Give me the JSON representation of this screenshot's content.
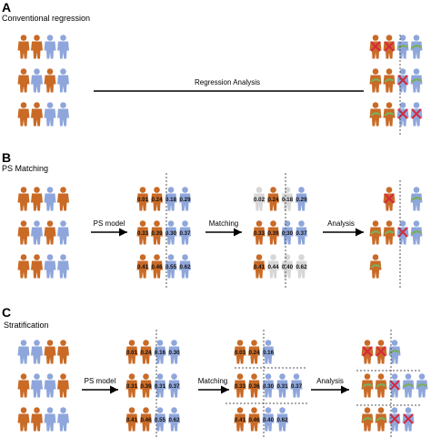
{
  "colors": {
    "treated": "#c96a26",
    "control": "#8ea6db",
    "unmatched": "#d7d7d7",
    "outcome_good": "#7cae5a",
    "outcome_bad": "#d6283e",
    "divider": "#555555"
  },
  "panels": {
    "A": {
      "letter": "A",
      "title": "Conventional regression",
      "arrow_label": "Regression Analysis"
    },
    "B": {
      "letter": "B",
      "title": "PS Matching",
      "arrow_labels": [
        "PS model",
        "Matching",
        "Analysis"
      ],
      "ps_scores": [
        [
          "0.01",
          "0.24",
          "0.18",
          "0.29"
        ],
        [
          "0.33",
          "0.39",
          "0.30",
          "0.37"
        ],
        [
          "0.41",
          "0.46",
          "0.55",
          "0.62"
        ]
      ],
      "matched_scores": [
        [
          "0.02",
          "0.24",
          "0.18",
          "0.29"
        ],
        [
          "0.33",
          "0.39",
          "0.30",
          "0.37"
        ],
        [
          "0.41",
          "0.44",
          "0.40",
          "0.62"
        ]
      ]
    },
    "C": {
      "letter": "C",
      "title": "Stratification",
      "arrow_labels": [
        "PS model",
        "Matching",
        "Analysis"
      ],
      "ps_scores": [
        [
          "0.01",
          "0.24",
          "0.16",
          "0.30"
        ],
        [
          "0.31",
          "0.39",
          "0.31",
          "0.37"
        ],
        [
          "0.41",
          "0.46",
          "0.55",
          "0.62"
        ]
      ],
      "strata_scores": [
        [
          "0.03",
          "0.24",
          "0.16"
        ],
        [
          "0.33",
          "0.36",
          "0.30",
          "0.31",
          "0.37"
        ],
        [
          "0.41",
          "0.46",
          "0.40",
          "0.62"
        ]
      ]
    }
  },
  "groups": {
    "A_start": [
      [
        "T",
        "T",
        "C",
        "C"
      ],
      [
        "T",
        "C",
        "T",
        "C"
      ],
      [
        "T",
        "T",
        "C",
        "C"
      ]
    ],
    "A_result": [
      [
        "T",
        "T",
        "C",
        "C"
      ],
      [
        "T",
        "T",
        "C",
        "C"
      ],
      [
        "T",
        "T",
        "C",
        "C"
      ]
    ],
    "A_result_marks": [
      [
        "X",
        "X",
        "G",
        "G"
      ],
      [
        "G",
        "G",
        "X",
        "G"
      ],
      [
        "G",
        "G",
        "X",
        "X"
      ]
    ],
    "B_start": [
      [
        "T",
        "T",
        "C",
        "T"
      ],
      [
        "T",
        "C",
        "T",
        "C"
      ],
      [
        "T",
        "T",
        "C",
        "C"
      ]
    ],
    "B_ps": [
      [
        "T",
        "T",
        "C",
        "C"
      ],
      [
        "T",
        "T",
        "C",
        "C"
      ],
      [
        "T",
        "T",
        "C",
        "C"
      ]
    ],
    "B_matched": [
      [
        "U",
        "T",
        "U",
        "C"
      ],
      [
        "T",
        "T",
        "C",
        "C"
      ],
      [
        "T",
        "U",
        "U",
        "U"
      ]
    ],
    "B_result": [
      [
        "",
        "T",
        "",
        "C"
      ],
      [
        "T",
        "T",
        "C",
        "C"
      ],
      [
        "T",
        "",
        "",
        ""
      ]
    ],
    "B_result_marks": [
      [
        "",
        "X",
        "",
        "G"
      ],
      [
        "G",
        "G",
        "X",
        "G"
      ],
      [
        "G",
        "",
        "",
        ""
      ]
    ],
    "C_start": [
      [
        "C",
        "C",
        "T",
        "T"
      ],
      [
        "T",
        "C",
        "C",
        "T"
      ],
      [
        "T",
        "T",
        "C",
        "C"
      ]
    ],
    "C_ps": [
      [
        "T",
        "T",
        "C",
        "C"
      ],
      [
        "T",
        "T",
        "C",
        "C"
      ],
      [
        "T",
        "T",
        "C",
        "C"
      ]
    ],
    "C_strata": [
      [
        "T",
        "T",
        "C",
        ""
      ],
      [
        "T",
        "T",
        "C",
        "C",
        "C"
      ],
      [
        "T",
        "T",
        "C",
        "C"
      ]
    ],
    "C_result": [
      [
        "T",
        "T",
        "C",
        ""
      ],
      [
        "T",
        "T",
        "C",
        "C",
        "C"
      ],
      [
        "T",
        "T",
        "C",
        "C"
      ]
    ],
    "C_result_marks": [
      [
        "X",
        "X",
        "G",
        ""
      ],
      [
        "G",
        "G",
        "X",
        "G",
        "G"
      ],
      [
        "G",
        "G",
        "X",
        "X"
      ]
    ]
  }
}
